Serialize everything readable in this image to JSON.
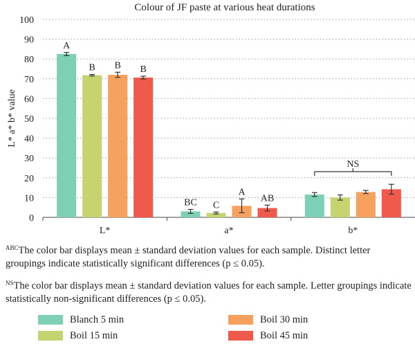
{
  "chart_data": {
    "type": "bar",
    "title": "Colour of JF paste at various heat durations",
    "xlabel": "",
    "ylabel": "L* a* b* value",
    "ylim": [
      0,
      100
    ],
    "yticks": [
      0,
      10,
      20,
      30,
      40,
      50,
      60,
      70,
      80,
      90,
      100
    ],
    "grid": "horizontal dotted",
    "categories": [
      "L*",
      "a*",
      "b*"
    ],
    "series": [
      {
        "name": "Blanch 5 min",
        "color": "#7dcfb6",
        "values": [
          82.5,
          3.0,
          11.5
        ],
        "errors": [
          0.8,
          1.0,
          1.0
        ],
        "letters": [
          "A",
          "BC",
          ""
        ]
      },
      {
        "name": "Boil 15 min",
        "color": "#c5d46f",
        "values": [
          71.8,
          2.2,
          10.0
        ],
        "errors": [
          0.4,
          0.5,
          1.3
        ],
        "letters": [
          "B",
          "C",
          ""
        ]
      },
      {
        "name": "Boil 30 min",
        "color": "#f6a15e",
        "values": [
          72.0,
          5.8,
          12.8
        ],
        "errors": [
          1.3,
          3.5,
          0.8
        ],
        "letters": [
          "B",
          "A",
          ""
        ]
      },
      {
        "name": "Boil 45 min",
        "color": "#ef5a4c",
        "values": [
          70.6,
          4.7,
          14.2
        ],
        "errors": [
          0.7,
          1.5,
          2.5
        ],
        "letters": [
          "B",
          "AB",
          ""
        ]
      }
    ],
    "annotations": [
      {
        "text": "NS",
        "category": "b*"
      }
    ],
    "legend_position": "bottom"
  },
  "notes": [
    {
      "sup": "ABC",
      "text": "The color bar displays mean ± standard deviation values for each sample. Distinct letter groupings indicate statistically significant differences (p ≤ 0.05)."
    },
    {
      "sup": "NS",
      "text": "The color bar displays mean ± standard deviation values for each sample. Letter groupings indicate statistically non-significant differences (p ≤ 0.05)."
    }
  ]
}
